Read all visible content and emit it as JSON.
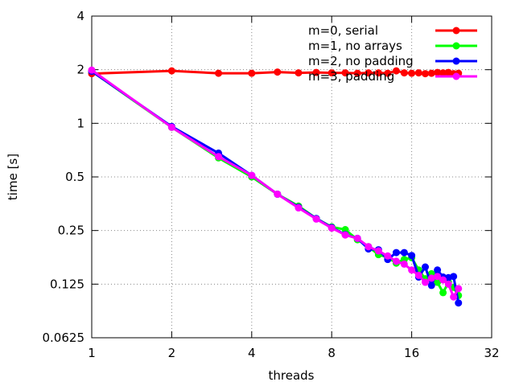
{
  "chart_data": {
    "type": "line",
    "xlabel": "threads",
    "ylabel": "time [s]",
    "x_scale": "log2",
    "y_scale": "log2",
    "xlim": [
      1,
      32
    ],
    "ylim": [
      0.0625,
      4
    ],
    "x_ticks": [
      "1",
      "2",
      "4",
      "8",
      "16",
      "32"
    ],
    "y_ticks": [
      "0.0625",
      "0.125",
      "0.25",
      "0.5",
      "1",
      "2",
      "4"
    ],
    "grid": true,
    "legend_position": "top-right",
    "series": [
      {
        "name": "m=0, serial",
        "color": "#ff0000",
        "x": [
          1,
          2,
          3,
          4,
          5,
          6,
          7,
          8,
          9,
          10,
          11,
          12,
          13,
          14,
          15,
          16,
          17,
          18,
          19,
          20,
          21,
          22,
          23,
          24
        ],
        "y": [
          1.9,
          1.97,
          1.91,
          1.91,
          1.94,
          1.92,
          1.93,
          1.92,
          1.92,
          1.91,
          1.92,
          1.92,
          1.91,
          1.97,
          1.92,
          1.91,
          1.92,
          1.9,
          1.91,
          1.93,
          1.92,
          1.93,
          1.9,
          1.91
        ]
      },
      {
        "name": "m=1, no arrays",
        "color": "#00ff00",
        "x": [
          1,
          2,
          3,
          4,
          5,
          6,
          7,
          8,
          9,
          10,
          11,
          12,
          13,
          14,
          15,
          16,
          17,
          18,
          19,
          20,
          21,
          22,
          23,
          24
        ],
        "y": [
          1.96,
          0.95,
          0.64,
          0.5,
          0.4,
          0.343,
          0.292,
          0.262,
          0.253,
          0.222,
          0.203,
          0.183,
          0.177,
          0.164,
          0.172,
          0.176,
          0.15,
          0.134,
          0.143,
          0.128,
          0.112,
          0.128,
          0.12,
          0.108
        ]
      },
      {
        "name": "m=2, no padding",
        "color": "#0000ff",
        "x": [
          1,
          2,
          3,
          4,
          5,
          6,
          7,
          8,
          9,
          10,
          11,
          12,
          13,
          14,
          15,
          16,
          17,
          18,
          19,
          20,
          21,
          22,
          23,
          24
        ],
        "y": [
          1.96,
          0.96,
          0.68,
          0.51,
          0.4,
          0.338,
          0.292,
          0.26,
          0.237,
          0.226,
          0.197,
          0.195,
          0.172,
          0.188,
          0.188,
          0.181,
          0.137,
          0.156,
          0.123,
          0.15,
          0.137,
          0.136,
          0.138,
          0.098
        ]
      },
      {
        "name": "m=3, padding",
        "color": "#ff00ff",
        "x": [
          1,
          2,
          3,
          4,
          5,
          6,
          7,
          8,
          9,
          10,
          11,
          12,
          13,
          14,
          15,
          16,
          17,
          18,
          19,
          20,
          21,
          22,
          23,
          24
        ],
        "y": [
          1.99,
          0.95,
          0.65,
          0.51,
          0.4,
          0.335,
          0.29,
          0.258,
          0.236,
          0.226,
          0.203,
          0.192,
          0.18,
          0.168,
          0.162,
          0.15,
          0.14,
          0.128,
          0.135,
          0.138,
          0.132,
          0.125,
          0.106,
          0.118
        ]
      }
    ]
  }
}
